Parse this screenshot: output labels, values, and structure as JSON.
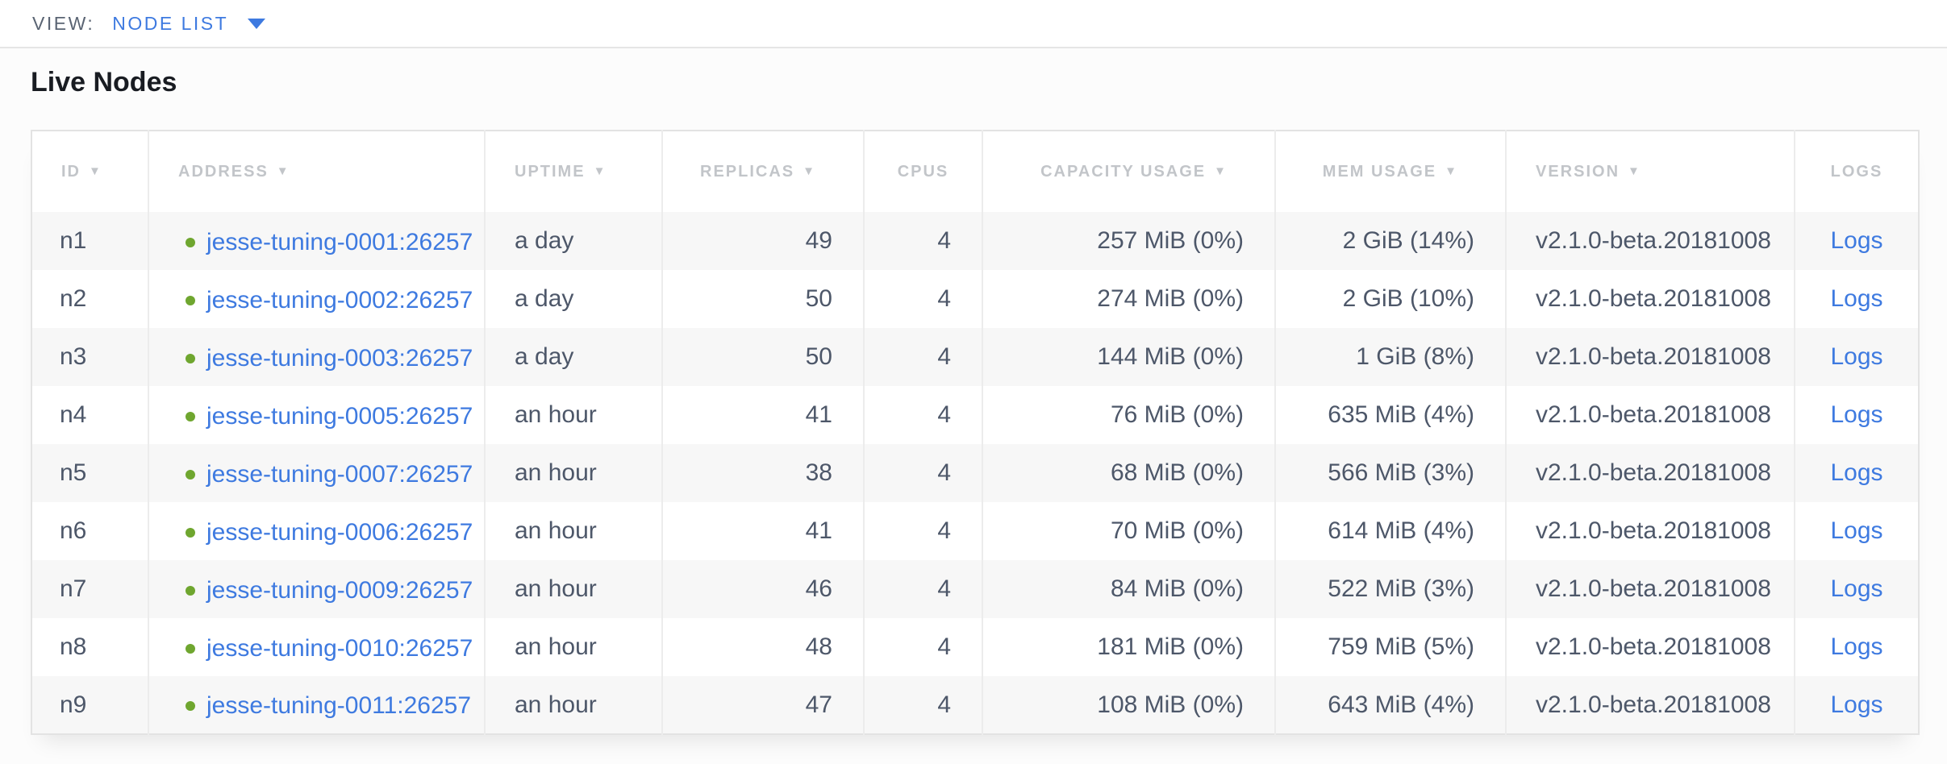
{
  "view_bar": {
    "label": "VIEW:",
    "selected": "NODE LIST"
  },
  "page": {
    "title": "Live Nodes"
  },
  "icons": {
    "sort_desc": "▼",
    "dropdown_caret": "▼",
    "node_status_up": "green-dot"
  },
  "colors": {
    "accent_blue": "#3e7ae0",
    "status_green_up": "#6fa62f",
    "header_gray": "#c2c5c9",
    "text_slate": "#4d5769",
    "zebra_row": "#f7f7f7"
  },
  "table": {
    "columns": [
      {
        "key": "id",
        "label": "ID",
        "sorted": true,
        "align": "left"
      },
      {
        "key": "address",
        "label": "ADDRESS",
        "sorted": true,
        "align": "left"
      },
      {
        "key": "uptime",
        "label": "UPTIME",
        "sorted": true,
        "align": "left"
      },
      {
        "key": "replicas",
        "label": "REPLICAS",
        "sorted": true,
        "align": "right"
      },
      {
        "key": "cpus",
        "label": "CPUS",
        "sorted": false,
        "align": "right"
      },
      {
        "key": "capacity",
        "label": "CAPACITY USAGE",
        "sorted": true,
        "align": "right"
      },
      {
        "key": "mem",
        "label": "MEM USAGE",
        "sorted": true,
        "align": "right"
      },
      {
        "key": "version",
        "label": "VERSION",
        "sorted": true,
        "align": "left"
      },
      {
        "key": "logs",
        "label": "LOGS",
        "sorted": false,
        "align": "center"
      }
    ],
    "rows": [
      {
        "id": "n1",
        "address": "jesse-tuning-0001:26257",
        "status": "up",
        "uptime": "a day",
        "replicas": "49",
        "cpus": "4",
        "capacity": "257 MiB (0%)",
        "mem": "2 GiB (14%)",
        "version": "v2.1.0-beta.20181008",
        "logs": "Logs"
      },
      {
        "id": "n2",
        "address": "jesse-tuning-0002:26257",
        "status": "up",
        "uptime": "a day",
        "replicas": "50",
        "cpus": "4",
        "capacity": "274 MiB (0%)",
        "mem": "2 GiB (10%)",
        "version": "v2.1.0-beta.20181008",
        "logs": "Logs"
      },
      {
        "id": "n3",
        "address": "jesse-tuning-0003:26257",
        "status": "up",
        "uptime": "a day",
        "replicas": "50",
        "cpus": "4",
        "capacity": "144 MiB (0%)",
        "mem": "1 GiB (8%)",
        "version": "v2.1.0-beta.20181008",
        "logs": "Logs"
      },
      {
        "id": "n4",
        "address": "jesse-tuning-0005:26257",
        "status": "up",
        "uptime": "an hour",
        "replicas": "41",
        "cpus": "4",
        "capacity": "76 MiB (0%)",
        "mem": "635 MiB (4%)",
        "version": "v2.1.0-beta.20181008",
        "logs": "Logs"
      },
      {
        "id": "n5",
        "address": "jesse-tuning-0007:26257",
        "status": "up",
        "uptime": "an hour",
        "replicas": "38",
        "cpus": "4",
        "capacity": "68 MiB (0%)",
        "mem": "566 MiB (3%)",
        "version": "v2.1.0-beta.20181008",
        "logs": "Logs"
      },
      {
        "id": "n6",
        "address": "jesse-tuning-0006:26257",
        "status": "up",
        "uptime": "an hour",
        "replicas": "41",
        "cpus": "4",
        "capacity": "70 MiB (0%)",
        "mem": "614 MiB (4%)",
        "version": "v2.1.0-beta.20181008",
        "logs": "Logs"
      },
      {
        "id": "n7",
        "address": "jesse-tuning-0009:26257",
        "status": "up",
        "uptime": "an hour",
        "replicas": "46",
        "cpus": "4",
        "capacity": "84 MiB (0%)",
        "mem": "522 MiB (3%)",
        "version": "v2.1.0-beta.20181008",
        "logs": "Logs"
      },
      {
        "id": "n8",
        "address": "jesse-tuning-0010:26257",
        "status": "up",
        "uptime": "an hour",
        "replicas": "48",
        "cpus": "4",
        "capacity": "181 MiB (0%)",
        "mem": "759 MiB (5%)",
        "version": "v2.1.0-beta.20181008",
        "logs": "Logs"
      },
      {
        "id": "n9",
        "address": "jesse-tuning-0011:26257",
        "status": "up",
        "uptime": "an hour",
        "replicas": "47",
        "cpus": "4",
        "capacity": "108 MiB (0%)",
        "mem": "643 MiB (4%)",
        "version": "v2.1.0-beta.20181008",
        "logs": "Logs"
      }
    ]
  }
}
